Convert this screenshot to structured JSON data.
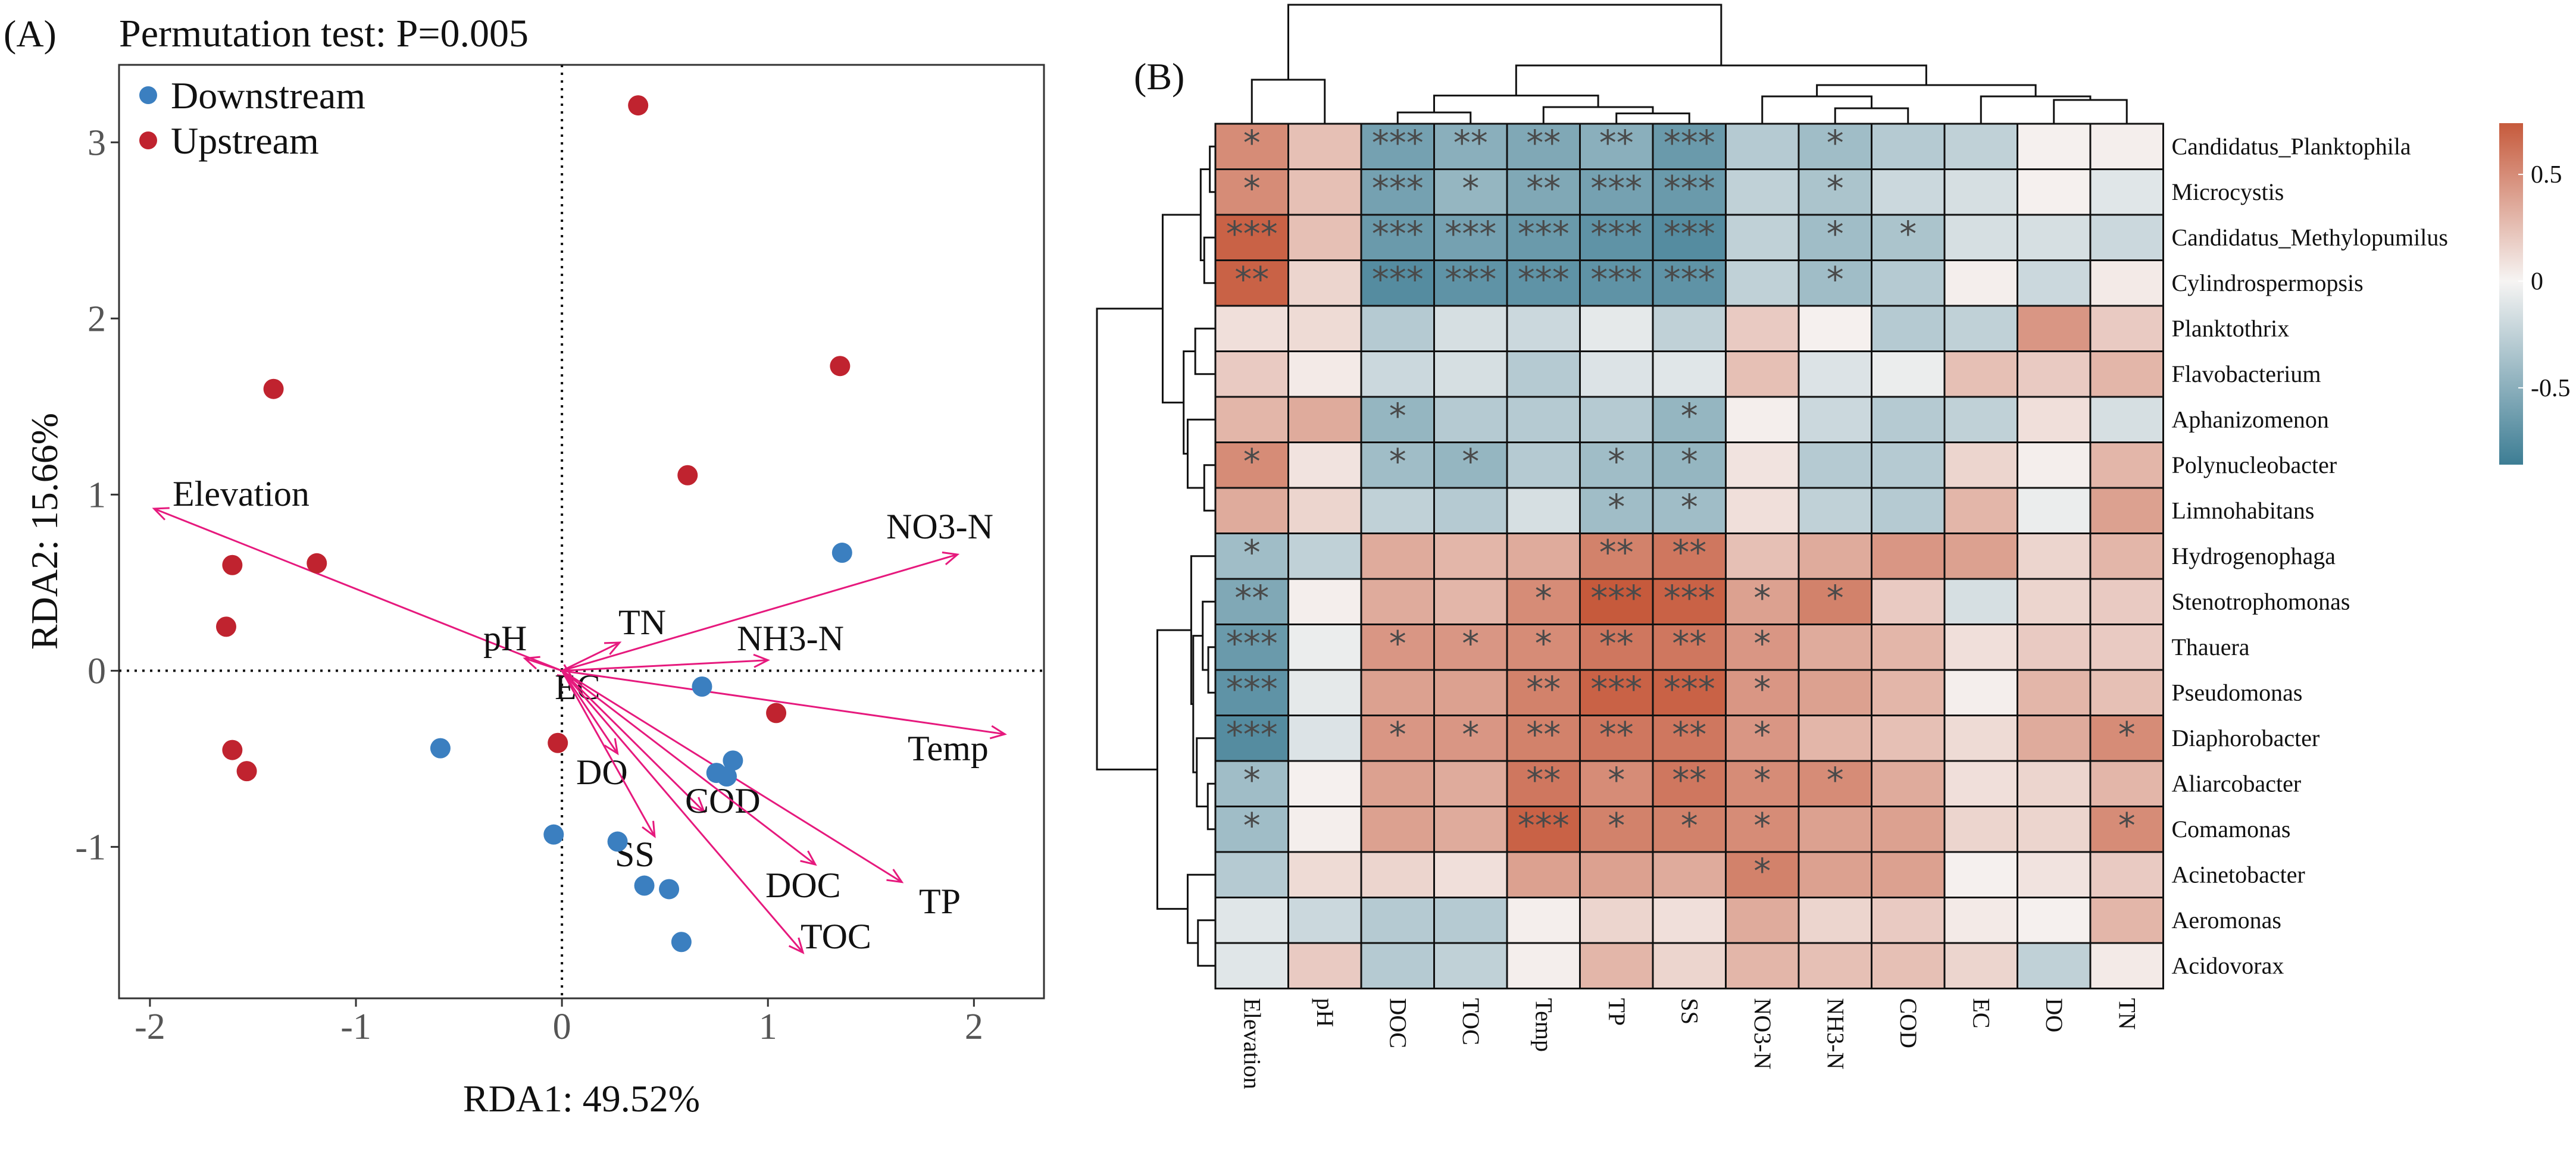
{
  "figure": {
    "panel_a_label": "(A)",
    "panel_b_label": "(B)"
  },
  "chart_data": [
    {
      "type": "scatter",
      "title": "Permutation test: P=0.005",
      "xlabel": "RDA1: 49.52%",
      "ylabel": "RDA2: 15.66%",
      "xlim": [
        -2.15,
        2.34
      ],
      "ylim": [
        -1.86,
        3.44
      ],
      "xticks": [
        -2,
        -1,
        0,
        1,
        2
      ],
      "yticks": [
        -1,
        0,
        1,
        2,
        3
      ],
      "grid": false,
      "reference_lines": {
        "x": 0,
        "y": 0,
        "style": "dotted"
      },
      "legend_position": "top-left",
      "series": [
        {
          "name": "Downstream",
          "color": "#3b7fc0",
          "points": [
            [
              1.36,
              0.67
            ],
            [
              0.68,
              -0.09
            ],
            [
              -0.59,
              -0.44
            ],
            [
              0.83,
              -0.51
            ],
            [
              0.75,
              -0.58
            ],
            [
              0.8,
              -0.6
            ],
            [
              -0.04,
              -0.93
            ],
            [
              0.27,
              -0.97
            ],
            [
              0.4,
              -1.22
            ],
            [
              0.52,
              -1.24
            ],
            [
              0.58,
              -1.54
            ]
          ]
        },
        {
          "name": "Upstream",
          "color": "#c0232f",
          "points": [
            [
              0.37,
              3.21
            ],
            [
              1.35,
              1.73
            ],
            [
              0.61,
              1.11
            ],
            [
              -1.4,
              1.6
            ],
            [
              -1.6,
              0.6
            ],
            [
              -1.19,
              0.61
            ],
            [
              -1.63,
              0.25
            ],
            [
              -1.6,
              -0.45
            ],
            [
              -1.53,
              -0.57
            ],
            [
              -0.02,
              -0.41
            ],
            [
              1.04,
              -0.24
            ]
          ]
        }
      ],
      "arrow_color": "#e6197d",
      "arrows": [
        {
          "label": "Elevation",
          "x": -1.98,
          "y": 0.92
        },
        {
          "label": "NO3-N",
          "x": 1.92,
          "y": 0.66
        },
        {
          "label": "TN",
          "x": 0.28,
          "y": 0.16
        },
        {
          "label": "pH",
          "x": -0.18,
          "y": 0.07
        },
        {
          "label": "NH3-N",
          "x": 1.0,
          "y": 0.06
        },
        {
          "label": "EC",
          "x": 0.05,
          "y": -0.04
        },
        {
          "label": "Temp",
          "x": 2.15,
          "y": -0.36
        },
        {
          "label": "DO",
          "x": 0.27,
          "y": -0.47
        },
        {
          "label": "COD",
          "x": 0.69,
          "y": -0.8
        },
        {
          "label": "SS",
          "x": 0.45,
          "y": -0.94
        },
        {
          "label": "DOC",
          "x": 1.23,
          "y": -1.1
        },
        {
          "label": "TP",
          "x": 1.65,
          "y": -1.2
        },
        {
          "label": "TOC",
          "x": 1.17,
          "y": -1.6
        }
      ]
    },
    {
      "type": "heatmap",
      "columns": [
        "Elevation",
        "pH",
        "DOC",
        "TOC",
        "Temp",
        "TP",
        "SS",
        "NO3-N",
        "NH3-N",
        "COD",
        "EC",
        "DO",
        "TN"
      ],
      "rows": [
        "Candidatus_Planktophila",
        "Microcystis",
        "Candidatus_Methylopumilus",
        "Cylindrospermopsis",
        "Planktothrix",
        "Flavobacterium",
        "Aphanizomenon",
        "Polynucleobacter",
        "Limnohabitans",
        "Hydrogenophaga",
        "Stenotrophomonas",
        "Thauera",
        "Pseudomonas",
        "Diaphorobacter",
        "Aliarcobacter",
        "Comamonas",
        "Acinetobacter",
        "Aeromonas",
        "Acidovorax"
      ],
      "values": [
        [
          0.5,
          0.25,
          -0.6,
          -0.5,
          -0.55,
          -0.5,
          -0.65,
          -0.3,
          -0.4,
          -0.3,
          -0.25,
          0.02,
          0.03
        ],
        [
          0.5,
          0.25,
          -0.6,
          -0.45,
          -0.55,
          -0.6,
          -0.65,
          -0.25,
          -0.35,
          -0.2,
          -0.15,
          0.02,
          -0.1
        ],
        [
          0.7,
          0.25,
          -0.65,
          -0.6,
          -0.65,
          -0.7,
          -0.75,
          -0.25,
          -0.4,
          -0.35,
          -0.15,
          -0.15,
          -0.2
        ],
        [
          0.7,
          0.15,
          -0.75,
          -0.7,
          -0.7,
          -0.7,
          -0.7,
          -0.25,
          -0.4,
          -0.3,
          0.03,
          -0.2,
          0.05
        ],
        [
          0.1,
          0.12,
          -0.3,
          -0.15,
          -0.2,
          -0.08,
          -0.25,
          0.2,
          0.02,
          -0.3,
          -0.25,
          0.45,
          0.2
        ],
        [
          0.2,
          0.05,
          -0.2,
          -0.15,
          -0.3,
          -0.12,
          -0.1,
          0.25,
          -0.12,
          -0.05,
          0.25,
          0.2,
          0.3
        ],
        [
          0.3,
          0.35,
          -0.45,
          -0.3,
          -0.3,
          -0.3,
          -0.45,
          0.03,
          -0.2,
          -0.3,
          -0.25,
          0.1,
          -0.15
        ],
        [
          0.5,
          0.08,
          -0.4,
          -0.45,
          -0.3,
          -0.4,
          -0.45,
          0.08,
          -0.3,
          -0.3,
          0.15,
          0.03,
          0.3
        ],
        [
          0.35,
          0.15,
          -0.25,
          -0.3,
          -0.15,
          -0.4,
          -0.4,
          0.1,
          -0.25,
          -0.3,
          0.3,
          -0.05,
          0.4
        ],
        [
          -0.4,
          -0.25,
          0.35,
          0.3,
          0.35,
          0.55,
          0.6,
          0.25,
          0.35,
          0.45,
          0.4,
          0.15,
          0.3
        ],
        [
          -0.55,
          0.03,
          0.35,
          0.3,
          0.5,
          0.75,
          0.7,
          0.4,
          0.55,
          0.2,
          -0.15,
          0.15,
          0.2
        ],
        [
          -0.65,
          -0.05,
          0.45,
          0.45,
          0.5,
          0.6,
          0.6,
          0.45,
          0.35,
          0.3,
          0.1,
          0.2,
          0.2
        ],
        [
          -0.7,
          -0.08,
          0.4,
          0.4,
          0.55,
          0.7,
          0.7,
          0.45,
          0.4,
          0.3,
          0.03,
          0.3,
          0.25
        ],
        [
          -0.75,
          -0.12,
          0.45,
          0.45,
          0.55,
          0.6,
          0.6,
          0.45,
          0.3,
          0.25,
          0.12,
          0.35,
          0.5
        ],
        [
          -0.4,
          0.02,
          0.4,
          0.35,
          0.6,
          0.5,
          0.6,
          0.5,
          0.5,
          0.35,
          0.1,
          0.15,
          0.3
        ],
        [
          -0.4,
          0.03,
          0.4,
          0.35,
          0.7,
          0.55,
          0.55,
          0.5,
          0.4,
          0.4,
          0.15,
          0.15,
          0.5
        ],
        [
          -0.3,
          0.12,
          0.15,
          0.1,
          0.4,
          0.4,
          0.35,
          0.55,
          0.4,
          0.4,
          0.02,
          0.08,
          0.2
        ],
        [
          -0.1,
          -0.2,
          -0.3,
          -0.3,
          0.03,
          0.15,
          0.1,
          0.35,
          0.15,
          0.2,
          0.05,
          0.02,
          0.3
        ],
        [
          -0.1,
          0.2,
          -0.3,
          -0.25,
          0.03,
          0.3,
          0.15,
          0.3,
          0.25,
          0.25,
          0.15,
          -0.25,
          0.05
        ]
      ],
      "significance": [
        [
          "*",
          "",
          "***",
          "**",
          "**",
          "**",
          "***",
          "",
          "*",
          "",
          "",
          "",
          ""
        ],
        [
          "*",
          "",
          "***",
          "*",
          "**",
          "***",
          "***",
          "",
          "*",
          "",
          "",
          "",
          ""
        ],
        [
          "***",
          "",
          "***",
          "***",
          "***",
          "***",
          "***",
          "",
          "*",
          "*",
          "",
          "",
          ""
        ],
        [
          "**",
          "",
          "***",
          "***",
          "***",
          "***",
          "***",
          "",
          "*",
          "",
          "",
          "",
          ""
        ],
        [
          "",
          "",
          "",
          "",
          "",
          "",
          "",
          "",
          "",
          "",
          "",
          "",
          ""
        ],
        [
          "",
          "",
          "",
          "",
          "",
          "",
          "",
          "",
          "",
          "",
          "",
          "",
          ""
        ],
        [
          "",
          "",
          "*",
          "",
          "",
          "",
          "*",
          "",
          "",
          "",
          "",
          "",
          ""
        ],
        [
          "*",
          "",
          "*",
          "*",
          "",
          "*",
          "*",
          "",
          "",
          "",
          "",
          "",
          ""
        ],
        [
          "",
          "",
          "",
          "",
          "",
          "*",
          "*",
          "",
          "",
          "",
          "",
          "",
          ""
        ],
        [
          "*",
          "",
          "",
          "",
          "",
          "**",
          "**",
          "",
          "",
          "",
          "",
          "",
          ""
        ],
        [
          "**",
          "",
          "",
          "",
          "*",
          "***",
          "***",
          "*",
          "*",
          "",
          "",
          "",
          ""
        ],
        [
          "***",
          "",
          "*",
          "*",
          "*",
          "**",
          "**",
          "*",
          "",
          "",
          "",
          "",
          ""
        ],
        [
          "***",
          "",
          "",
          "",
          "**",
          "***",
          "***",
          "*",
          "",
          "",
          "",
          "",
          ""
        ],
        [
          "***",
          "",
          "*",
          "*",
          "**",
          "**",
          "**",
          "*",
          "",
          "",
          "",
          "",
          "*"
        ],
        [
          "*",
          "",
          "",
          "",
          "**",
          "*",
          "**",
          "*",
          "*",
          "",
          "",
          "",
          ""
        ],
        [
          "*",
          "",
          "",
          "",
          "***",
          "*",
          "*",
          "*",
          "",
          "",
          "",
          "",
          "*"
        ],
        [
          "",
          "",
          "",
          "",
          "",
          "",
          "",
          "*",
          "",
          "",
          "",
          "",
          ""
        ],
        [
          "",
          "",
          "",
          "",
          "",
          "",
          "",
          "",
          "",
          "",
          "",
          "",
          ""
        ],
        [
          "",
          "",
          "",
          "",
          "",
          "",
          "",
          "",
          "",
          "",
          "",
          "",
          ""
        ]
      ],
      "colorbar": {
        "range": [
          -0.86,
          0.74
        ],
        "ticks": [
          0.5,
          0,
          -0.5
        ],
        "tick_labels": [
          "0.5",
          "0",
          "-0.5"
        ],
        "low_color": "#3d7d94",
        "mid_color": "#f6f4f3",
        "high_color": "#c65a3c"
      }
    }
  ]
}
